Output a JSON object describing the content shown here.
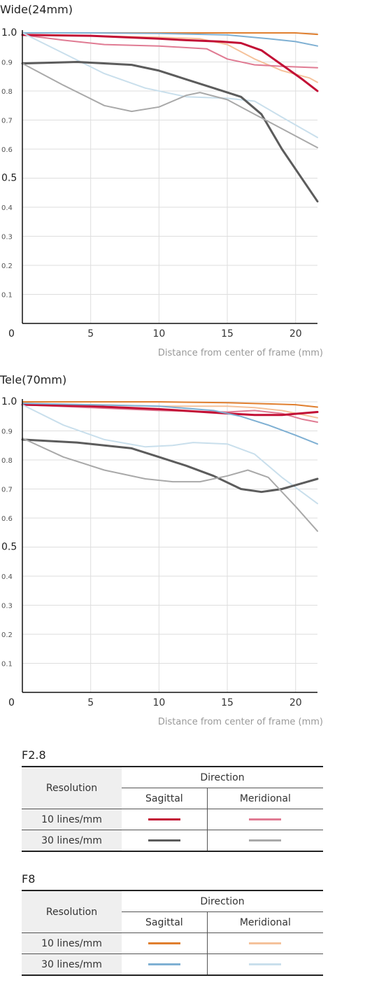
{
  "chart_data": [
    {
      "type": "line",
      "title": "Wide(24mm)",
      "xlabel": "Distance from center of frame (mm)",
      "ylabel": "",
      "xlim": [
        0,
        21.6
      ],
      "ylim": [
        0,
        1.0
      ],
      "xticks": [
        "5",
        "10",
        "15",
        "20"
      ],
      "yticks": [
        "0",
        "0.1",
        "0.2",
        "0.3",
        "0.4",
        "0.5",
        "0.6",
        "0.7",
        "0.8",
        "0.9",
        "1.0"
      ],
      "grid": true,
      "series": [
        {
          "color": "#e07f2f",
          "width": 2,
          "x": [
            0,
            5,
            10,
            15,
            18,
            20,
            21.6
          ],
          "y": [
            1.0,
            1.0,
            1.0,
            1.0,
            1.0,
            1.0,
            0.995
          ]
        },
        {
          "color": "#7fb0d3",
          "width": 2,
          "x": [
            0,
            5,
            10,
            15,
            18,
            20,
            21.6
          ],
          "y": [
            1.0,
            1.0,
            0.998,
            0.993,
            0.98,
            0.97,
            0.955
          ]
        },
        {
          "color": "#f5c29b",
          "width": 2,
          "x": [
            0,
            5,
            10,
            13,
            15,
            17,
            19,
            21,
            21.6
          ],
          "y": [
            0.995,
            0.99,
            0.985,
            0.98,
            0.96,
            0.91,
            0.87,
            0.845,
            0.83
          ]
        },
        {
          "color": "#e07b93",
          "width": 2,
          "x": [
            0,
            3,
            6,
            10,
            13.5,
            15,
            17,
            19,
            21.6
          ],
          "y": [
            0.993,
            0.975,
            0.96,
            0.955,
            0.945,
            0.91,
            0.89,
            0.885,
            0.88
          ]
        },
        {
          "color": "#c20f35",
          "width": 3,
          "x": [
            0,
            5,
            10,
            12,
            14.5,
            16,
            17.5,
            19,
            20.5,
            21.6
          ],
          "y": [
            0.993,
            0.99,
            0.98,
            0.975,
            0.97,
            0.965,
            0.94,
            0.89,
            0.84,
            0.8
          ]
        },
        {
          "color": "#c9dfec",
          "width": 2,
          "x": [
            0,
            3,
            6,
            9,
            12,
            15,
            17,
            19,
            21.6
          ],
          "y": [
            1.0,
            0.93,
            0.86,
            0.81,
            0.78,
            0.775,
            0.765,
            0.71,
            0.64
          ]
        },
        {
          "color": "#5c5c5c",
          "width": 3,
          "x": [
            0,
            4,
            8,
            10,
            12,
            14,
            16,
            17.5,
            19,
            21.6
          ],
          "y": [
            0.895,
            0.9,
            0.89,
            0.87,
            0.84,
            0.81,
            0.78,
            0.72,
            0.6,
            0.42
          ]
        },
        {
          "color": "#a9a9a9",
          "width": 2,
          "x": [
            0,
            3,
            6,
            8,
            10,
            12,
            13,
            15,
            17,
            19,
            21.6
          ],
          "y": [
            0.895,
            0.82,
            0.75,
            0.73,
            0.745,
            0.785,
            0.795,
            0.77,
            0.72,
            0.67,
            0.605
          ]
        }
      ]
    },
    {
      "type": "line",
      "title": "Tele(70mm)",
      "xlabel": "Distance from center of frame (mm)",
      "ylabel": "",
      "xlim": [
        0,
        21.6
      ],
      "ylim": [
        0,
        1.0
      ],
      "xticks": [
        "5",
        "10",
        "15",
        "20"
      ],
      "yticks": [
        "0",
        "0.1",
        "0.2",
        "0.3",
        "0.4",
        "0.5",
        "0.6",
        "0.7",
        "0.8",
        "0.9",
        "1.0"
      ],
      "grid": true,
      "series": [
        {
          "color": "#e07f2f",
          "width": 2,
          "x": [
            0,
            5,
            10,
            15,
            18,
            20,
            21.6
          ],
          "y": [
            1.0,
            1.0,
            1.0,
            0.997,
            0.993,
            0.99,
            0.982
          ]
        },
        {
          "color": "#f5c29b",
          "width": 2,
          "x": [
            0,
            5,
            10,
            15,
            17,
            19,
            21.6
          ],
          "y": [
            0.995,
            0.99,
            0.985,
            0.985,
            0.98,
            0.97,
            0.945
          ]
        },
        {
          "color": "#e07b93",
          "width": 2,
          "x": [
            0,
            5,
            10,
            15,
            17,
            19,
            20.5,
            21.6
          ],
          "y": [
            0.99,
            0.98,
            0.97,
            0.965,
            0.97,
            0.96,
            0.94,
            0.93
          ]
        },
        {
          "color": "#c20f35",
          "width": 3,
          "x": [
            0,
            5,
            10,
            15,
            17,
            19,
            21.6
          ],
          "y": [
            0.99,
            0.985,
            0.975,
            0.96,
            0.955,
            0.955,
            0.965
          ]
        },
        {
          "color": "#7fb0d3",
          "width": 2,
          "x": [
            0,
            5,
            10,
            14,
            16,
            18,
            20,
            21.6
          ],
          "y": [
            0.995,
            0.99,
            0.985,
            0.97,
            0.95,
            0.92,
            0.885,
            0.855
          ]
        },
        {
          "color": "#c9dfec",
          "width": 2,
          "x": [
            0,
            3,
            6,
            9,
            11,
            12.5,
            15,
            17,
            19,
            21.6
          ],
          "y": [
            0.99,
            0.92,
            0.87,
            0.845,
            0.85,
            0.86,
            0.855,
            0.82,
            0.74,
            0.65
          ]
        },
        {
          "color": "#5c5c5c",
          "width": 3,
          "x": [
            0,
            4,
            8,
            10,
            12,
            14,
            16,
            17.5,
            19,
            20.5,
            21.6
          ],
          "y": [
            0.87,
            0.86,
            0.84,
            0.81,
            0.78,
            0.745,
            0.7,
            0.69,
            0.7,
            0.72,
            0.735
          ]
        },
        {
          "color": "#a9a9a9",
          "width": 2,
          "x": [
            0,
            3,
            6,
            9,
            11,
            13,
            15,
            16.5,
            18,
            20,
            21.6
          ],
          "y": [
            0.875,
            0.81,
            0.765,
            0.735,
            0.725,
            0.725,
            0.745,
            0.765,
            0.74,
            0.64,
            0.555
          ]
        }
      ]
    }
  ],
  "legends": [
    {
      "title": "F2.8",
      "resolution_label": "Resolution",
      "direction_label": "Direction",
      "sagittal_label": "Sagittal",
      "meridional_label": "Meridional",
      "rows": [
        {
          "label": "10 lines/mm",
          "sagittal_color": "#c20f35",
          "meridional_color": "#e07b93"
        },
        {
          "label": "30 lines/mm",
          "sagittal_color": "#5c5c5c",
          "meridional_color": "#a9a9a9"
        }
      ]
    },
    {
      "title": "F8",
      "resolution_label": "Resolution",
      "direction_label": "Direction",
      "sagittal_label": "Sagittal",
      "meridional_label": "Meridional",
      "rows": [
        {
          "label": "10 lines/mm",
          "sagittal_color": "#e07f2f",
          "meridional_color": "#f5c29b"
        },
        {
          "label": "30 lines/mm",
          "sagittal_color": "#7fb0d3",
          "meridional_color": "#c9dfec"
        }
      ]
    }
  ]
}
